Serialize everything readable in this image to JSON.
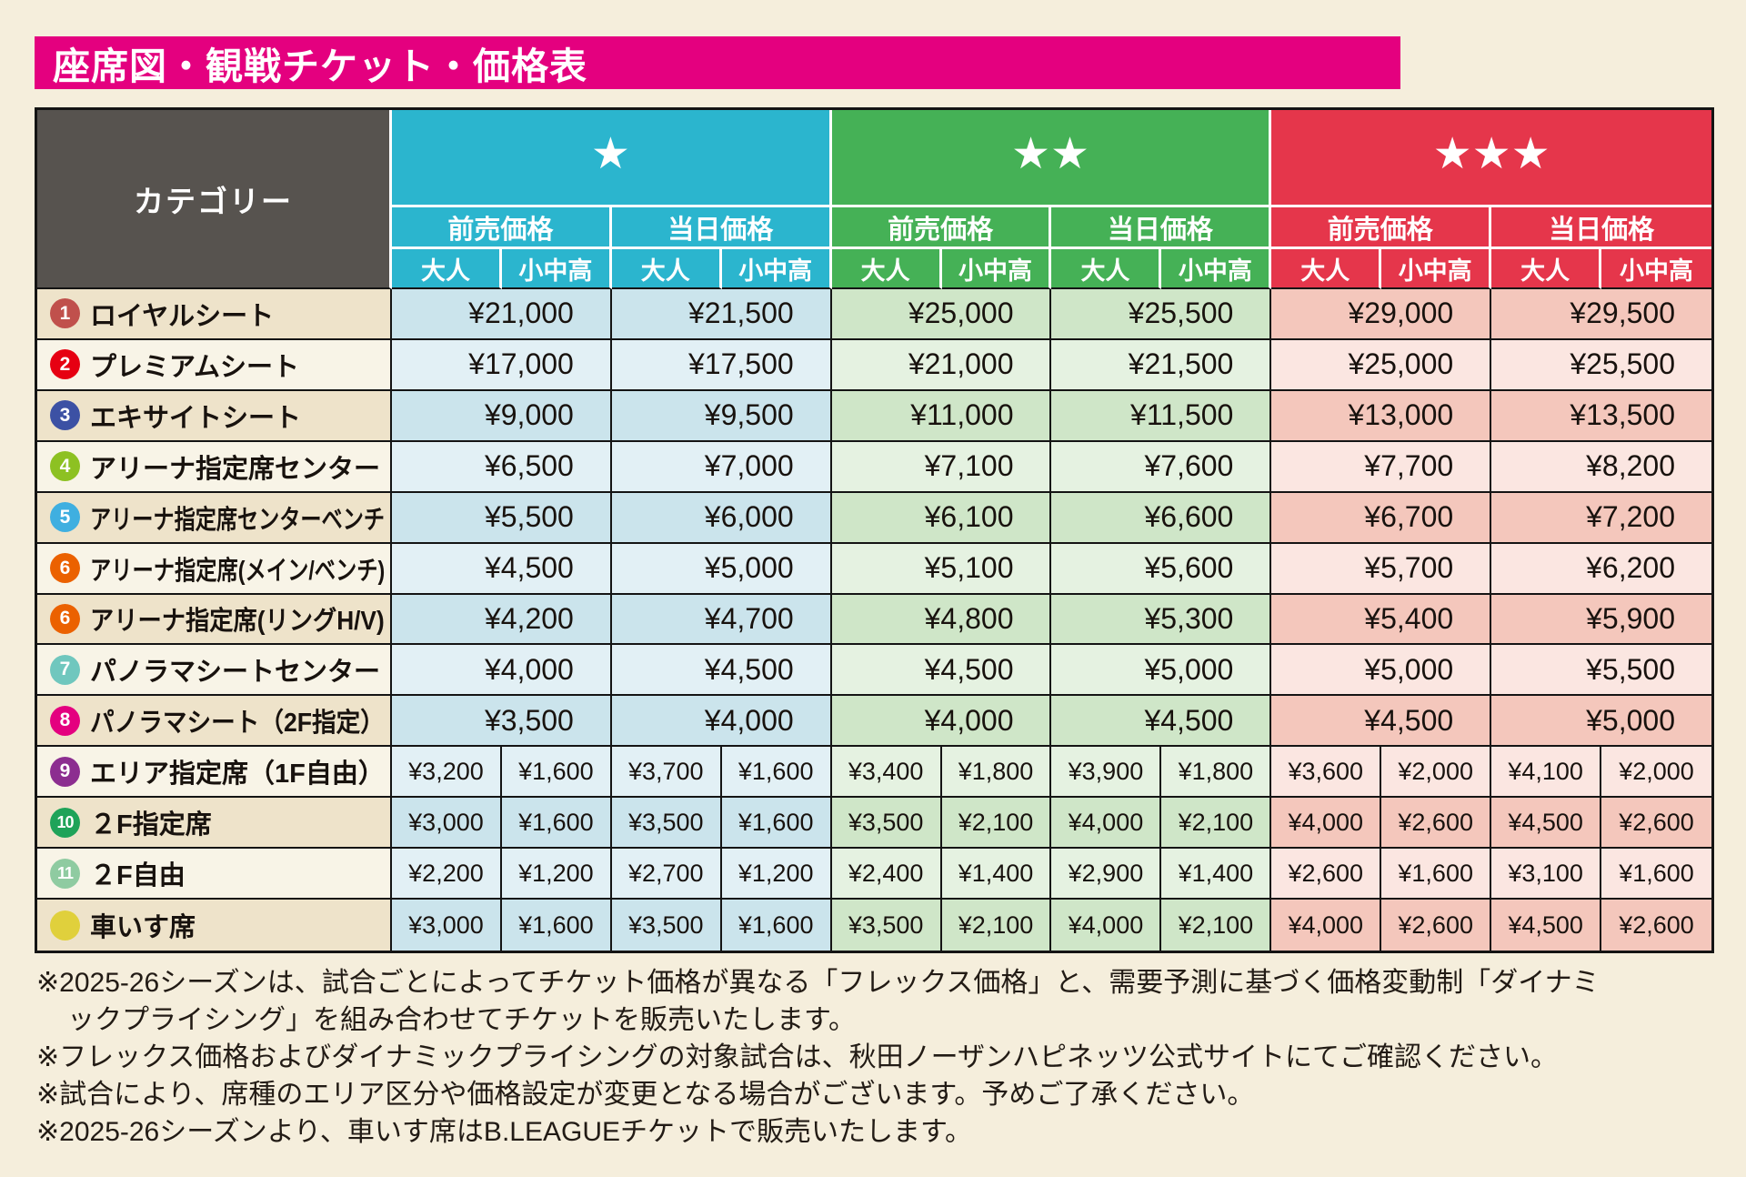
{
  "title": "座席図・観戦チケット・価格表",
  "colors": {
    "page_bg": "#F5EEDC",
    "title_bg": "#E4007F",
    "header_gray": "#57534F",
    "star1_cyan": "#2BB5CE",
    "star2_green": "#45B156",
    "star3_red": "#E5364B",
    "tint_blue_dark": "#CBE4EC",
    "tint_blue_light": "#E2F0F5",
    "tint_green_dark": "#CFE6C8",
    "tint_green_light": "#E5F2E1",
    "tint_red_dark": "#F4C7BC",
    "tint_red_light": "#FBE6E1",
    "cat_row_dark": "#EEE3CA",
    "cat_row_light": "#F8F4E7"
  },
  "table": {
    "category_header": "カテゴリー",
    "groups": [
      {
        "stars": "★",
        "color": "#2BB5CE"
      },
      {
        "stars": "★★",
        "color": "#45B156"
      },
      {
        "stars": "★★★",
        "color": "#E5364B"
      }
    ],
    "price_types": [
      "前売価格",
      "当日価格"
    ],
    "ages": [
      "大人",
      "小中高"
    ],
    "rows": [
      {
        "badge": "1",
        "badge_color": "#C0504C",
        "name": "ロイヤルシート",
        "merged": true,
        "prices": [
          "¥21,000",
          "¥21,500",
          "¥25,000",
          "¥25,500",
          "¥29,000",
          "¥29,500"
        ]
      },
      {
        "badge": "2",
        "badge_color": "#E60012",
        "name": "プレミアムシート",
        "merged": true,
        "prices": [
          "¥17,000",
          "¥17,500",
          "¥21,000",
          "¥21,500",
          "¥25,000",
          "¥25,500"
        ]
      },
      {
        "badge": "3",
        "badge_color": "#3C51A4",
        "name": "エキサイトシート",
        "merged": true,
        "prices": [
          "¥9,000",
          "¥9,500",
          "¥11,000",
          "¥11,500",
          "¥13,000",
          "¥13,500"
        ]
      },
      {
        "badge": "4",
        "badge_color": "#8DC122",
        "name": "アリーナ指定席センター",
        "merged": true,
        "prices": [
          "¥6,500",
          "¥7,000",
          "¥7,100",
          "¥7,600",
          "¥7,700",
          "¥8,200"
        ]
      },
      {
        "badge": "5",
        "badge_color": "#3FAFE0",
        "name": "アリーナ指定席センターベンチ",
        "merged": true,
        "prices": [
          "¥5,500",
          "¥6,000",
          "¥6,100",
          "¥6,600",
          "¥6,700",
          "¥7,200"
        ]
      },
      {
        "badge": "6",
        "badge_color": "#EB6100",
        "name": "アリーナ指定席(メイン/ベンチ)",
        "merged": true,
        "prices": [
          "¥4,500",
          "¥5,000",
          "¥5,100",
          "¥5,600",
          "¥5,700",
          "¥6,200"
        ]
      },
      {
        "badge": "6",
        "badge_color": "#EB6100",
        "name": "アリーナ指定席(リングH/V)",
        "merged": true,
        "prices": [
          "¥4,200",
          "¥4,700",
          "¥4,800",
          "¥5,300",
          "¥5,400",
          "¥5,900"
        ]
      },
      {
        "badge": "7",
        "badge_color": "#70C7BE",
        "name": "パノラマシートセンター",
        "merged": true,
        "prices": [
          "¥4,000",
          "¥4,500",
          "¥4,500",
          "¥5,000",
          "¥5,000",
          "¥5,500"
        ]
      },
      {
        "badge": "8",
        "badge_color": "#E4007F",
        "name": "パノラマシート（2F指定）",
        "merged": true,
        "prices": [
          "¥3,500",
          "¥4,000",
          "¥4,000",
          "¥4,500",
          "¥4,500",
          "¥5,000"
        ]
      },
      {
        "badge": "9",
        "badge_color": "#8C2E90",
        "name": "エリア指定席（1F自由）",
        "merged": false,
        "prices": [
          "¥3,200",
          "¥1,600",
          "¥3,700",
          "¥1,600",
          "¥3,400",
          "¥1,800",
          "¥3,900",
          "¥1,800",
          "¥3,600",
          "¥2,000",
          "¥4,100",
          "¥2,000"
        ]
      },
      {
        "badge": "10",
        "badge_color": "#1FA359",
        "name": "２F指定席",
        "merged": false,
        "prices": [
          "¥3,000",
          "¥1,600",
          "¥3,500",
          "¥1,600",
          "¥3,500",
          "¥2,100",
          "¥4,000",
          "¥2,100",
          "¥4,000",
          "¥2,600",
          "¥4,500",
          "¥2,600"
        ]
      },
      {
        "badge": "11",
        "badge_color": "#8FCBA1",
        "name": "２F自由",
        "merged": false,
        "prices": [
          "¥2,200",
          "¥1,200",
          "¥2,700",
          "¥1,200",
          "¥2,400",
          "¥1,400",
          "¥2,900",
          "¥1,400",
          "¥2,600",
          "¥1,600",
          "¥3,100",
          "¥1,600"
        ]
      },
      {
        "badge": "",
        "badge_color": "#E0D03C",
        "name": "車いす席",
        "merged": false,
        "prices": [
          "¥3,000",
          "¥1,600",
          "¥3,500",
          "¥1,600",
          "¥3,500",
          "¥2,100",
          "¥4,000",
          "¥2,100",
          "¥4,000",
          "¥2,600",
          "¥4,500",
          "¥2,600"
        ]
      }
    ]
  },
  "footnotes": [
    "※2025-26シーズンは、試合ごとによってチケット価格が異なる「フレックス価格」と、需要予測に基づく価格変動制「ダイナミ\nックプライシング」を組み合わせてチケットを販売いたします。",
    "※フレックス価格およびダイナミックプライシングの対象試合は、秋田ノーザンハピネッツ公式サイトにてご確認ください。",
    "※試合により、席種のエリア区分や価格設定が変更となる場合がございます。予めご了承ください。",
    "※2025-26シーズンより、車いす席はB.LEAGUEチケットで販売いたします。"
  ]
}
